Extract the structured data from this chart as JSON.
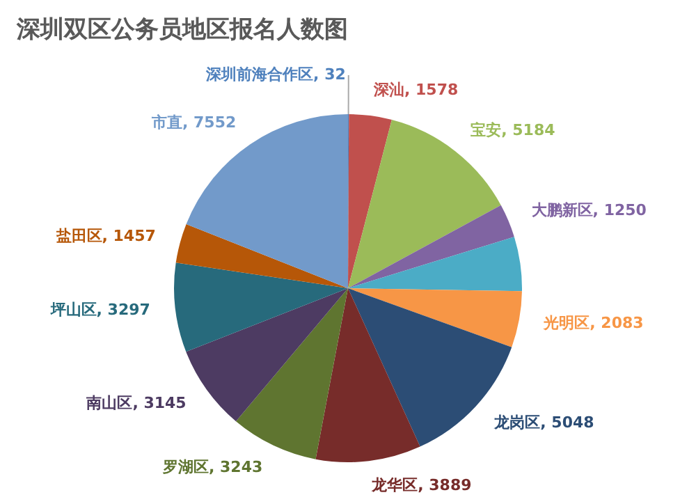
{
  "chart_data": {
    "type": "pie",
    "title": "深圳双区公务员地区报名人数图",
    "categories": [
      "深圳前海合作区",
      "深汕",
      "宝安",
      "大鹏新区",
      null,
      "光明区",
      "龙岗区",
      "龙华区",
      "罗湖区",
      "南山区",
      "坪山区",
      "盐田区",
      "市直"
    ],
    "values": [
      32,
      1578,
      5184,
      1250,
      2000,
      2083,
      5048,
      3889,
      3243,
      3145,
      3297,
      1457,
      7552
    ],
    "value_labels": [
      "32",
      "1578",
      "5184",
      "1250",
      null,
      "2083",
      "5048",
      "3889",
      "3243",
      "3145",
      "3297",
      "1457",
      "7552"
    ],
    "colors": [
      "#4f81bd",
      "#c0504d",
      "#9bbb59",
      "#8064a2",
      "#4bacc6",
      "#f79646",
      "#2c4d75",
      "#772c2a",
      "#5f7530",
      "#4d3b62",
      "#276a7c",
      "#b65708",
      "#729aca"
    ],
    "legend": false
  }
}
